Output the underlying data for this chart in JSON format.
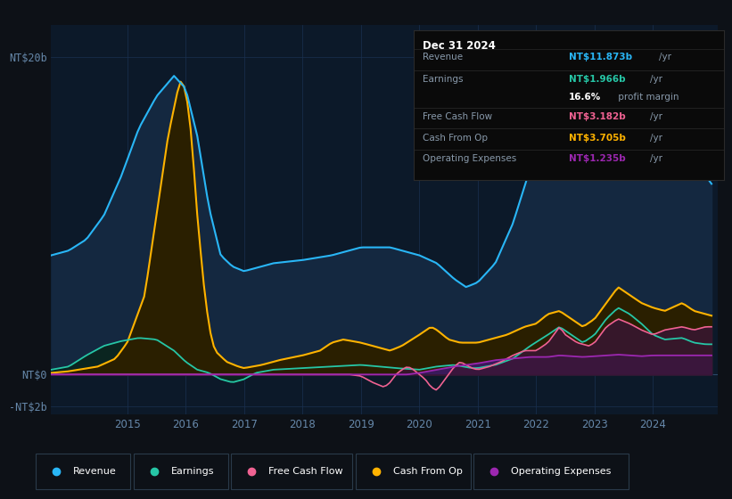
{
  "bg_color": "#0d1117",
  "plot_bg_color": "#0c1929",
  "grid_color": "#1a3050",
  "revenue_color": "#29b6f6",
  "earnings_color": "#26c6a6",
  "fcf_color": "#f06292",
  "cashfromop_color": "#ffb300",
  "opex_color": "#9c27b0",
  "revenue_fill": "#142840",
  "earnings_fill": "#0e2e2a",
  "cashfromop_fill": "#2a1f00",
  "opex_fill": "#3a1a5a",
  "title_box_bg": "#0a0a0a",
  "title_box_edge": "#2a2a2a",
  "legend_bg": "#0d1117",
  "legend_edge": "#2a2a2a",
  "tick_color": "#6688aa",
  "info": {
    "date": "Dec 31 2024",
    "rows": [
      {
        "label": "Revenue",
        "value": "NT$11.873b",
        "unit": "/yr",
        "vc": "#29b6f6"
      },
      {
        "label": "Earnings",
        "value": "NT$1.966b",
        "unit": "/yr",
        "vc": "#26c6a6"
      },
      {
        "label": "",
        "value": "16.6%",
        "unit": " profit margin",
        "vc": "#ffffff"
      },
      {
        "label": "Free Cash Flow",
        "value": "NT$3.182b",
        "unit": "/yr",
        "vc": "#f06292"
      },
      {
        "label": "Cash From Op",
        "value": "NT$3.705b",
        "unit": "/yr",
        "vc": "#ffb300"
      },
      {
        "label": "Operating Expenses",
        "value": "NT$1.235b",
        "unit": "/yr",
        "vc": "#9c27b0"
      }
    ]
  },
  "legend_items": [
    {
      "label": "Revenue",
      "color": "#29b6f6"
    },
    {
      "label": "Earnings",
      "color": "#26c6a6"
    },
    {
      "label": "Free Cash Flow",
      "color": "#f06292"
    },
    {
      "label": "Cash From Op",
      "color": "#ffb300"
    },
    {
      "label": "Operating Expenses",
      "color": "#9c27b0"
    }
  ]
}
